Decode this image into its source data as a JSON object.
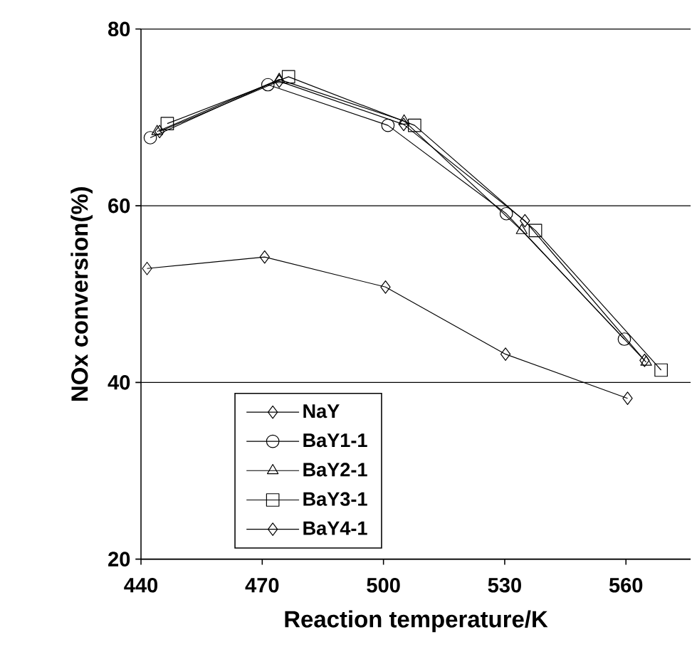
{
  "chart_data": {
    "type": "line",
    "xlabel": "Reaction temperature/K",
    "ylabel": "NOx conversion(%)",
    "xlim": [
      440,
      576
    ],
    "xticks": [
      440,
      470,
      500,
      530,
      560
    ],
    "ylim": [
      20,
      80
    ],
    "yticks": [
      20,
      40,
      60,
      80
    ],
    "grid": "y",
    "legend": "bottom left",
    "line_style": "solid",
    "series": [
      {
        "name": "NaY",
        "color": "#000000",
        "marker": "diamond",
        "x": [
          441.5,
          470.6,
          500.5,
          530.2,
          560.4
        ],
        "values": [
          52.9,
          54.2,
          50.8,
          43.2,
          38.2
        ]
      },
      {
        "name": "BaY1-1",
        "color": "#000000",
        "marker": "circle",
        "x": [
          442.3,
          471.4,
          501.1,
          530.4,
          559.6
        ],
        "values": [
          67.7,
          73.7,
          69.1,
          59.1,
          44.9
        ]
      },
      {
        "name": "BaY2-1",
        "color": "#000000",
        "marker": "triangle",
        "x": [
          444.0,
          474.2,
          505.1,
          534.2,
          565.0
        ],
        "values": [
          68.4,
          74.3,
          69.6,
          57.2,
          42.3
        ]
      },
      {
        "name": "BaY3-1",
        "color": "#000000",
        "marker": "square",
        "x": [
          446.5,
          476.5,
          507.7,
          537.6,
          568.7
        ],
        "values": [
          69.3,
          74.6,
          69.1,
          57.2,
          41.4
        ]
      },
      {
        "name": "BaY4-1",
        "color": "#000000",
        "marker": "diamond",
        "x": [
          444.6,
          474.2,
          505.0,
          535.0,
          564.6
        ],
        "values": [
          68.4,
          74.1,
          69.2,
          58.3,
          42.5
        ]
      }
    ]
  }
}
